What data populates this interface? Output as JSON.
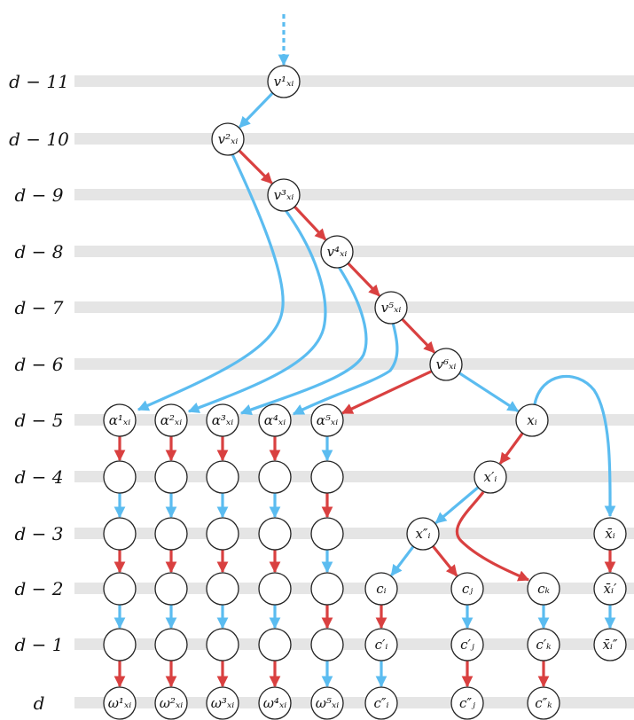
{
  "colors": {
    "blue": "#5bbcf0",
    "red": "#d94040",
    "band": "#e5e5e5"
  },
  "levels": [
    {
      "id": "L11",
      "label": "d − 11"
    },
    {
      "id": "L10",
      "label": "d − 10"
    },
    {
      "id": "L9",
      "label": "d − 9"
    },
    {
      "id": "L8",
      "label": "d − 8"
    },
    {
      "id": "L7",
      "label": "d − 7"
    },
    {
      "id": "L6",
      "label": "d − 6"
    },
    {
      "id": "L5",
      "label": "d − 5"
    },
    {
      "id": "L4",
      "label": "d − 4"
    },
    {
      "id": "L3",
      "label": "d − 3"
    },
    {
      "id": "L2",
      "label": "d − 2"
    },
    {
      "id": "L1",
      "label": "d − 1"
    },
    {
      "id": "L0",
      "label": "d"
    }
  ],
  "nodes": [
    {
      "id": "v1",
      "label": "v¹ₓᵢ"
    },
    {
      "id": "v2",
      "label": "v²ₓᵢ"
    },
    {
      "id": "v3",
      "label": "v³ₓᵢ"
    },
    {
      "id": "v4",
      "label": "v⁴ₓᵢ"
    },
    {
      "id": "v5",
      "label": "v⁵ₓᵢ"
    },
    {
      "id": "v6",
      "label": "v⁶ₓᵢ"
    },
    {
      "id": "a1",
      "label": "α¹ₓᵢ"
    },
    {
      "id": "a2",
      "label": "α²ₓᵢ"
    },
    {
      "id": "a3",
      "label": "α³ₓᵢ"
    },
    {
      "id": "a4",
      "label": "α⁴ₓᵢ"
    },
    {
      "id": "a5",
      "label": "α⁵ₓᵢ"
    },
    {
      "id": "xi",
      "label": "xᵢ"
    },
    {
      "id": "xp",
      "label": "x′ᵢ"
    },
    {
      "id": "xpp",
      "label": "x″ᵢ"
    },
    {
      "id": "xb",
      "label": "x̄ᵢ"
    },
    {
      "id": "xbp",
      "label": "x̄ᵢ′"
    },
    {
      "id": "xbpp",
      "label": "x̄ᵢ″"
    },
    {
      "id": "ci",
      "label": "cᵢ"
    },
    {
      "id": "cj",
      "label": "cⱼ"
    },
    {
      "id": "ck",
      "label": "cₖ"
    },
    {
      "id": "cpi",
      "label": "c′ᵢ"
    },
    {
      "id": "cpj",
      "label": "c′ⱼ"
    },
    {
      "id": "cpk",
      "label": "c′ₖ"
    },
    {
      "id": "cppi",
      "label": "c″ᵢ"
    },
    {
      "id": "cppj",
      "label": "c″ⱼ"
    },
    {
      "id": "cppk",
      "label": "c″ₖ"
    },
    {
      "id": "w1",
      "label": "ω¹ₓᵢ"
    },
    {
      "id": "w2",
      "label": "ω²ₓᵢ"
    },
    {
      "id": "w3",
      "label": "ω³ₓᵢ"
    },
    {
      "id": "w4",
      "label": "ω⁴ₓᵢ"
    },
    {
      "id": "w5",
      "label": "ω⁵ₓᵢ"
    },
    {
      "id": "e14",
      "label": ""
    },
    {
      "id": "e13",
      "label": ""
    },
    {
      "id": "e12",
      "label": ""
    },
    {
      "id": "e11",
      "label": ""
    },
    {
      "id": "e24",
      "label": ""
    },
    {
      "id": "e23",
      "label": ""
    },
    {
      "id": "e22",
      "label": ""
    },
    {
      "id": "e21",
      "label": ""
    },
    {
      "id": "e34",
      "label": ""
    },
    {
      "id": "e33",
      "label": ""
    },
    {
      "id": "e32",
      "label": ""
    },
    {
      "id": "e31",
      "label": ""
    },
    {
      "id": "e44",
      "label": ""
    },
    {
      "id": "e43",
      "label": ""
    },
    {
      "id": "e42",
      "label": ""
    },
    {
      "id": "e41",
      "label": ""
    },
    {
      "id": "e54",
      "label": ""
    },
    {
      "id": "e53",
      "label": ""
    },
    {
      "id": "e52",
      "label": ""
    },
    {
      "id": "e51",
      "label": ""
    }
  ],
  "edges": [
    {
      "from": "top",
      "to": "v1",
      "color": "blue",
      "style": "dotted"
    },
    {
      "from": "v1",
      "to": "v2",
      "color": "blue"
    },
    {
      "from": "v2",
      "to": "v3",
      "color": "red"
    },
    {
      "from": "v3",
      "to": "v4",
      "color": "red"
    },
    {
      "from": "v4",
      "to": "v5",
      "color": "red"
    },
    {
      "from": "v5",
      "to": "v6",
      "color": "red"
    },
    {
      "from": "v2",
      "to": "a1",
      "color": "blue",
      "curve": true
    },
    {
      "from": "v3",
      "to": "a2",
      "color": "blue",
      "curve": true
    },
    {
      "from": "v4",
      "to": "a3",
      "color": "blue",
      "curve": true
    },
    {
      "from": "v5",
      "to": "a4",
      "color": "blue",
      "curve": true
    },
    {
      "from": "v6",
      "to": "a5",
      "color": "red"
    },
    {
      "from": "v6",
      "to": "xi",
      "color": "blue"
    },
    {
      "from": "xi",
      "to": "xb",
      "color": "blue",
      "curve": true
    },
    {
      "from": "xi",
      "to": "xp",
      "color": "red"
    },
    {
      "from": "xp",
      "to": "xpp",
      "color": "blue"
    },
    {
      "from": "xp",
      "to": "ck",
      "color": "red",
      "curve": true
    },
    {
      "from": "xpp",
      "to": "ci",
      "color": "blue"
    },
    {
      "from": "xpp",
      "to": "cj",
      "color": "red"
    },
    {
      "from": "xb",
      "to": "xbp",
      "color": "red"
    },
    {
      "from": "xbp",
      "to": "xbpp",
      "color": "blue"
    },
    {
      "from": "ci",
      "to": "cpi",
      "color": "red"
    },
    {
      "from": "cpi",
      "to": "cppi",
      "color": "blue"
    },
    {
      "from": "cj",
      "to": "cpj",
      "color": "blue"
    },
    {
      "from": "cpj",
      "to": "cppj",
      "color": "red"
    },
    {
      "from": "ck",
      "to": "cpk",
      "color": "blue"
    },
    {
      "from": "cpk",
      "to": "cppk",
      "color": "red"
    },
    {
      "from": "a1",
      "to": "e14",
      "color": "red"
    },
    {
      "from": "e14",
      "to": "e13",
      "color": "blue"
    },
    {
      "from": "e13",
      "to": "e12",
      "color": "red"
    },
    {
      "from": "e12",
      "to": "e11",
      "color": "blue"
    },
    {
      "from": "e11",
      "to": "w1",
      "color": "red"
    },
    {
      "from": "a2",
      "to": "e24",
      "color": "red"
    },
    {
      "from": "e24",
      "to": "e23",
      "color": "blue"
    },
    {
      "from": "e23",
      "to": "e22",
      "color": "red"
    },
    {
      "from": "e22",
      "to": "e21",
      "color": "blue"
    },
    {
      "from": "e21",
      "to": "w2",
      "color": "red"
    },
    {
      "from": "a3",
      "to": "e34",
      "color": "red"
    },
    {
      "from": "e34",
      "to": "e33",
      "color": "blue"
    },
    {
      "from": "e33",
      "to": "e32",
      "color": "red"
    },
    {
      "from": "e32",
      "to": "e31",
      "color": "blue"
    },
    {
      "from": "e31",
      "to": "w3",
      "color": "red"
    },
    {
      "from": "a4",
      "to": "e44",
      "color": "red"
    },
    {
      "from": "e44",
      "to": "e43",
      "color": "blue"
    },
    {
      "from": "e43",
      "to": "e42",
      "color": "red"
    },
    {
      "from": "e42",
      "to": "e41",
      "color": "blue"
    },
    {
      "from": "e41",
      "to": "w4",
      "color": "red"
    },
    {
      "from": "a5",
      "to": "e54",
      "color": "blue"
    },
    {
      "from": "e54",
      "to": "e53",
      "color": "red"
    },
    {
      "from": "e53",
      "to": "e52",
      "color": "blue"
    },
    {
      "from": "e52",
      "to": "e51",
      "color": "red"
    },
    {
      "from": "e51",
      "to": "w5",
      "color": "blue"
    }
  ]
}
